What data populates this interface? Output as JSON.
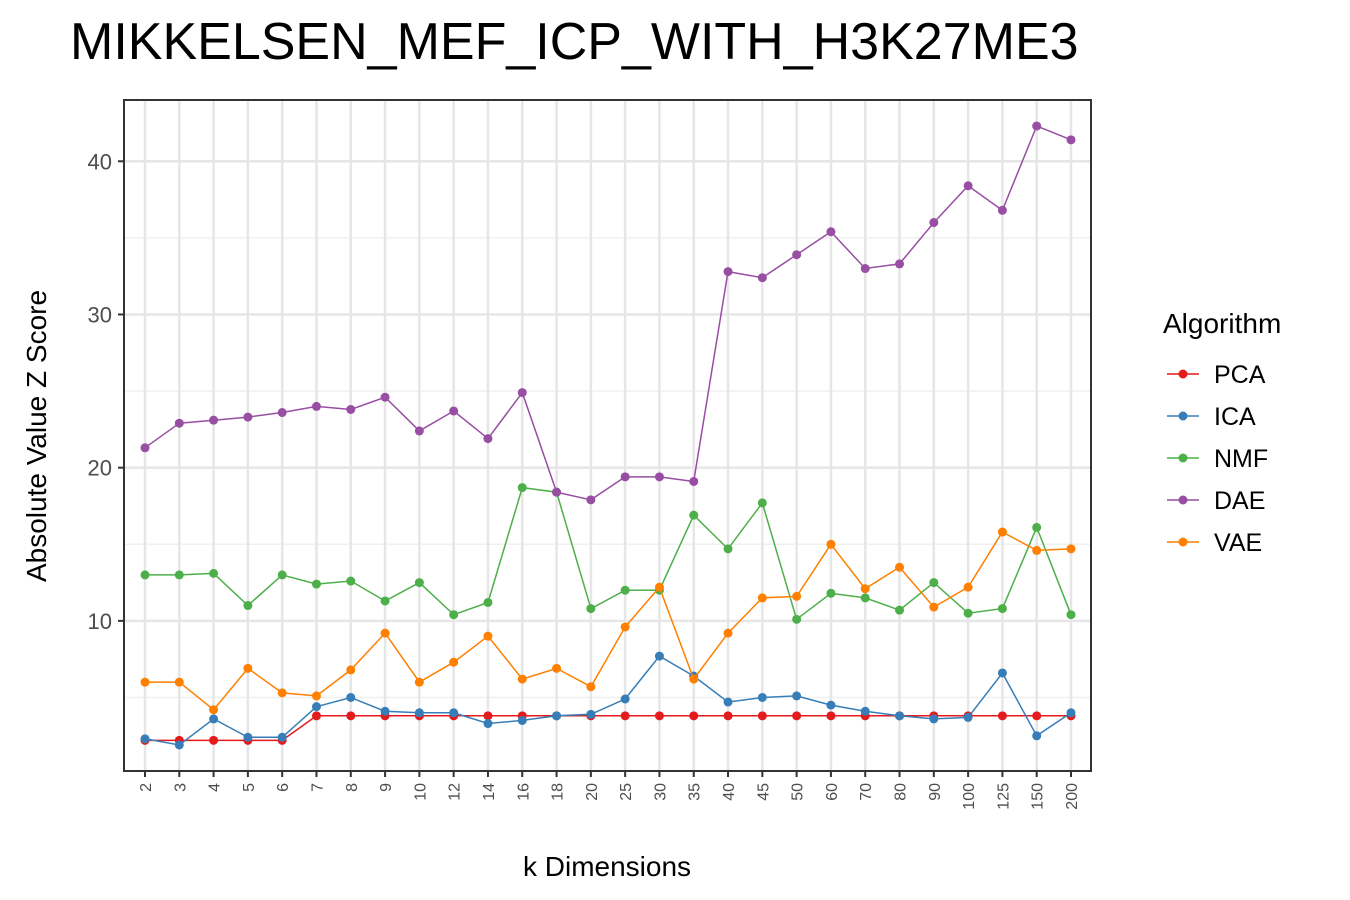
{
  "chart_data": {
    "type": "line",
    "title": "MIKKELSEN_MEF_ICP_WITH_H3K27ME3",
    "xlabel": "k Dimensions",
    "ylabel": "Absolute Value Z Score",
    "categories": [
      "2",
      "3",
      "4",
      "5",
      "6",
      "7",
      "8",
      "9",
      "10",
      "12",
      "14",
      "16",
      "18",
      "20",
      "25",
      "30",
      "35",
      "40",
      "45",
      "50",
      "60",
      "70",
      "80",
      "90",
      "100",
      "125",
      "150",
      "200"
    ],
    "y_ticks": [
      10,
      20,
      30,
      40
    ],
    "ylim": [
      0.2,
      44
    ],
    "grid": true,
    "legend": {
      "title": "Algorithm",
      "position": "right"
    },
    "series": [
      {
        "name": "PCA",
        "color": "#e41a1c",
        "values": [
          2.2,
          2.2,
          2.2,
          2.2,
          2.2,
          3.8,
          3.8,
          3.8,
          3.8,
          3.8,
          3.8,
          3.8,
          3.8,
          3.8,
          3.8,
          3.8,
          3.8,
          3.8,
          3.8,
          3.8,
          3.8,
          3.8,
          3.8,
          3.8,
          3.8,
          3.8,
          3.8,
          3.8
        ]
      },
      {
        "name": "ICA",
        "color": "#377eb8",
        "values": [
          2.3,
          1.9,
          3.6,
          2.4,
          2.4,
          4.4,
          5.0,
          4.1,
          4.0,
          4.0,
          3.3,
          3.5,
          3.8,
          3.9,
          4.9,
          7.7,
          6.4,
          4.7,
          5.0,
          5.1,
          4.5,
          4.1,
          3.8,
          3.6,
          3.7,
          6.6,
          2.5,
          4.0
        ]
      },
      {
        "name": "NMF",
        "color": "#4daf4a",
        "values": [
          13.0,
          13.0,
          13.1,
          11.0,
          13.0,
          12.4,
          12.6,
          11.3,
          12.5,
          10.4,
          11.2,
          18.7,
          18.4,
          10.8,
          12.0,
          12.0,
          16.9,
          14.7,
          17.7,
          10.1,
          11.8,
          11.5,
          10.7,
          12.5,
          10.5,
          10.8,
          16.1,
          10.4
        ]
      },
      {
        "name": "DAE",
        "color": "#984ea3",
        "values": [
          21.3,
          22.9,
          23.1,
          23.3,
          23.6,
          24.0,
          23.8,
          24.6,
          22.4,
          23.7,
          21.9,
          24.9,
          18.4,
          17.9,
          19.4,
          19.4,
          19.1,
          32.8,
          32.4,
          33.9,
          35.4,
          33.0,
          33.3,
          36.0,
          38.4,
          36.8,
          42.3,
          41.4
        ]
      },
      {
        "name": "VAE",
        "color": "#ff7f00",
        "values": [
          6.0,
          6.0,
          4.2,
          6.9,
          5.3,
          5.1,
          6.8,
          9.2,
          6.0,
          7.3,
          9.0,
          6.2,
          6.9,
          5.7,
          9.6,
          12.2,
          6.2,
          9.2,
          11.5,
          11.6,
          15.0,
          12.1,
          13.5,
          10.9,
          12.2,
          15.8,
          14.6,
          14.7
        ]
      }
    ]
  }
}
